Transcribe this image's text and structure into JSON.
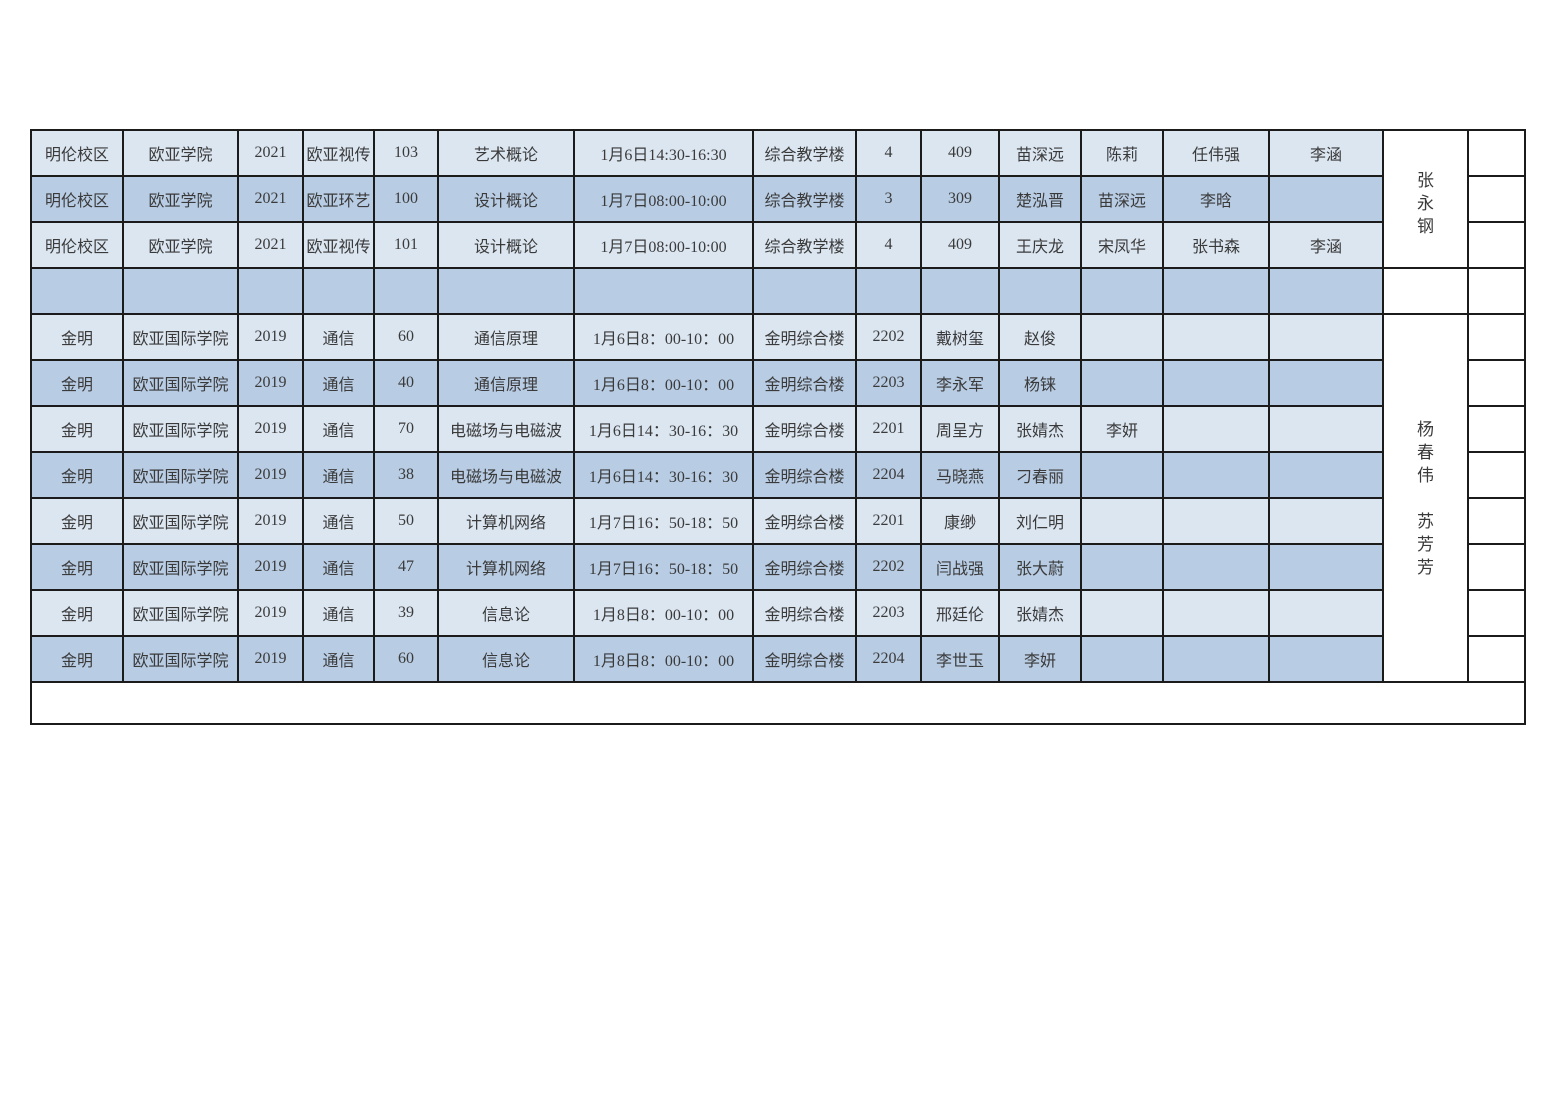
{
  "colors": {
    "row_light": "#dce6f1",
    "row_dark": "#b8cce4",
    "border": "#1b1b1b",
    "background": "#ffffff"
  },
  "table": {
    "rows": [
      {
        "cells": [
          "明伦校区",
          "欧亚学院",
          "2021",
          "欧亚视传",
          "103",
          "艺术概论",
          "1月6日14:30-16:30",
          "综合教学楼",
          "4",
          "409",
          "苗深远",
          "陈莉",
          "任伟强",
          "李涵"
        ]
      },
      {
        "cells": [
          "明伦校区",
          "欧亚学院",
          "2021",
          "欧亚环艺",
          "100",
          "设计概论",
          "1月7日08:00-10:00",
          "综合教学楼",
          "3",
          "309",
          "楚泓晋",
          "苗深远",
          "李晗",
          ""
        ]
      },
      {
        "cells": [
          "明伦校区",
          "欧亚学院",
          "2021",
          "欧亚视传",
          "101",
          "设计概论",
          "1月7日08:00-10:00",
          "综合教学楼",
          "4",
          "409",
          "王庆龙",
          "宋凤华",
          "张书森",
          "李涵"
        ]
      },
      {
        "cells": [
          "",
          "",
          "",
          "",
          "",
          "",
          "",
          "",
          "",
          "",
          "",
          "",
          "",
          ""
        ]
      },
      {
        "cells": [
          "金明",
          "欧亚国际学院",
          "2019",
          "通信",
          "60",
          "通信原理",
          "1月6日8：00-10：00",
          "金明综合楼",
          "2202",
          "戴树玺",
          "赵俊",
          "",
          "",
          ""
        ]
      },
      {
        "cells": [
          "金明",
          "欧亚国际学院",
          "2019",
          "通信",
          "40",
          "通信原理",
          "1月6日8：00-10：00",
          "金明综合楼",
          "2203",
          "李永军",
          "杨铼",
          "",
          "",
          ""
        ]
      },
      {
        "cells": [
          "金明",
          "欧亚国际学院",
          "2019",
          "通信",
          "70",
          "电磁场与电磁波",
          "1月6日14：30-16：30",
          "金明综合楼",
          "2201",
          "周呈方",
          "张婧杰",
          "李妍",
          "",
          ""
        ]
      },
      {
        "cells": [
          "金明",
          "欧亚国际学院",
          "2019",
          "通信",
          "38",
          "电磁场与电磁波",
          "1月6日14：30-16：30",
          "金明综合楼",
          "2204",
          "马晓燕",
          "刁春丽",
          "",
          "",
          ""
        ]
      },
      {
        "cells": [
          "金明",
          "欧亚国际学院",
          "2019",
          "通信",
          "50",
          "计算机网络",
          "1月7日16：50-18：50",
          "金明综合楼",
          "2201",
          "康缈",
          "刘仁明",
          "",
          "",
          ""
        ]
      },
      {
        "cells": [
          "金明",
          "欧亚国际学院",
          "2019",
          "通信",
          "47",
          "计算机网络",
          "1月7日16：50-18：50",
          "金明综合楼",
          "2202",
          "闫战强",
          "张大蔚",
          "",
          "",
          ""
        ]
      },
      {
        "cells": [
          "金明",
          "欧亚国际学院",
          "2019",
          "通信",
          "39",
          "信息论",
          "1月8日8：00-10：00",
          "金明综合楼",
          "2203",
          "邢廷伦",
          "张婧杰",
          "",
          "",
          ""
        ]
      },
      {
        "cells": [
          "金明",
          "欧亚国际学院",
          "2019",
          "通信",
          "60",
          "信息论",
          "1月8日8：00-10：00",
          "金明综合楼",
          "2204",
          "李世玉",
          "李妍",
          "",
          "",
          ""
        ]
      }
    ],
    "proctor_groups": [
      {
        "name": "张永钢",
        "span": 3
      },
      {
        "name": "",
        "span": 1
      },
      {
        "name": "杨春伟 苏芳芳",
        "span": 8
      }
    ],
    "footer_row": {
      "text": ""
    }
  }
}
